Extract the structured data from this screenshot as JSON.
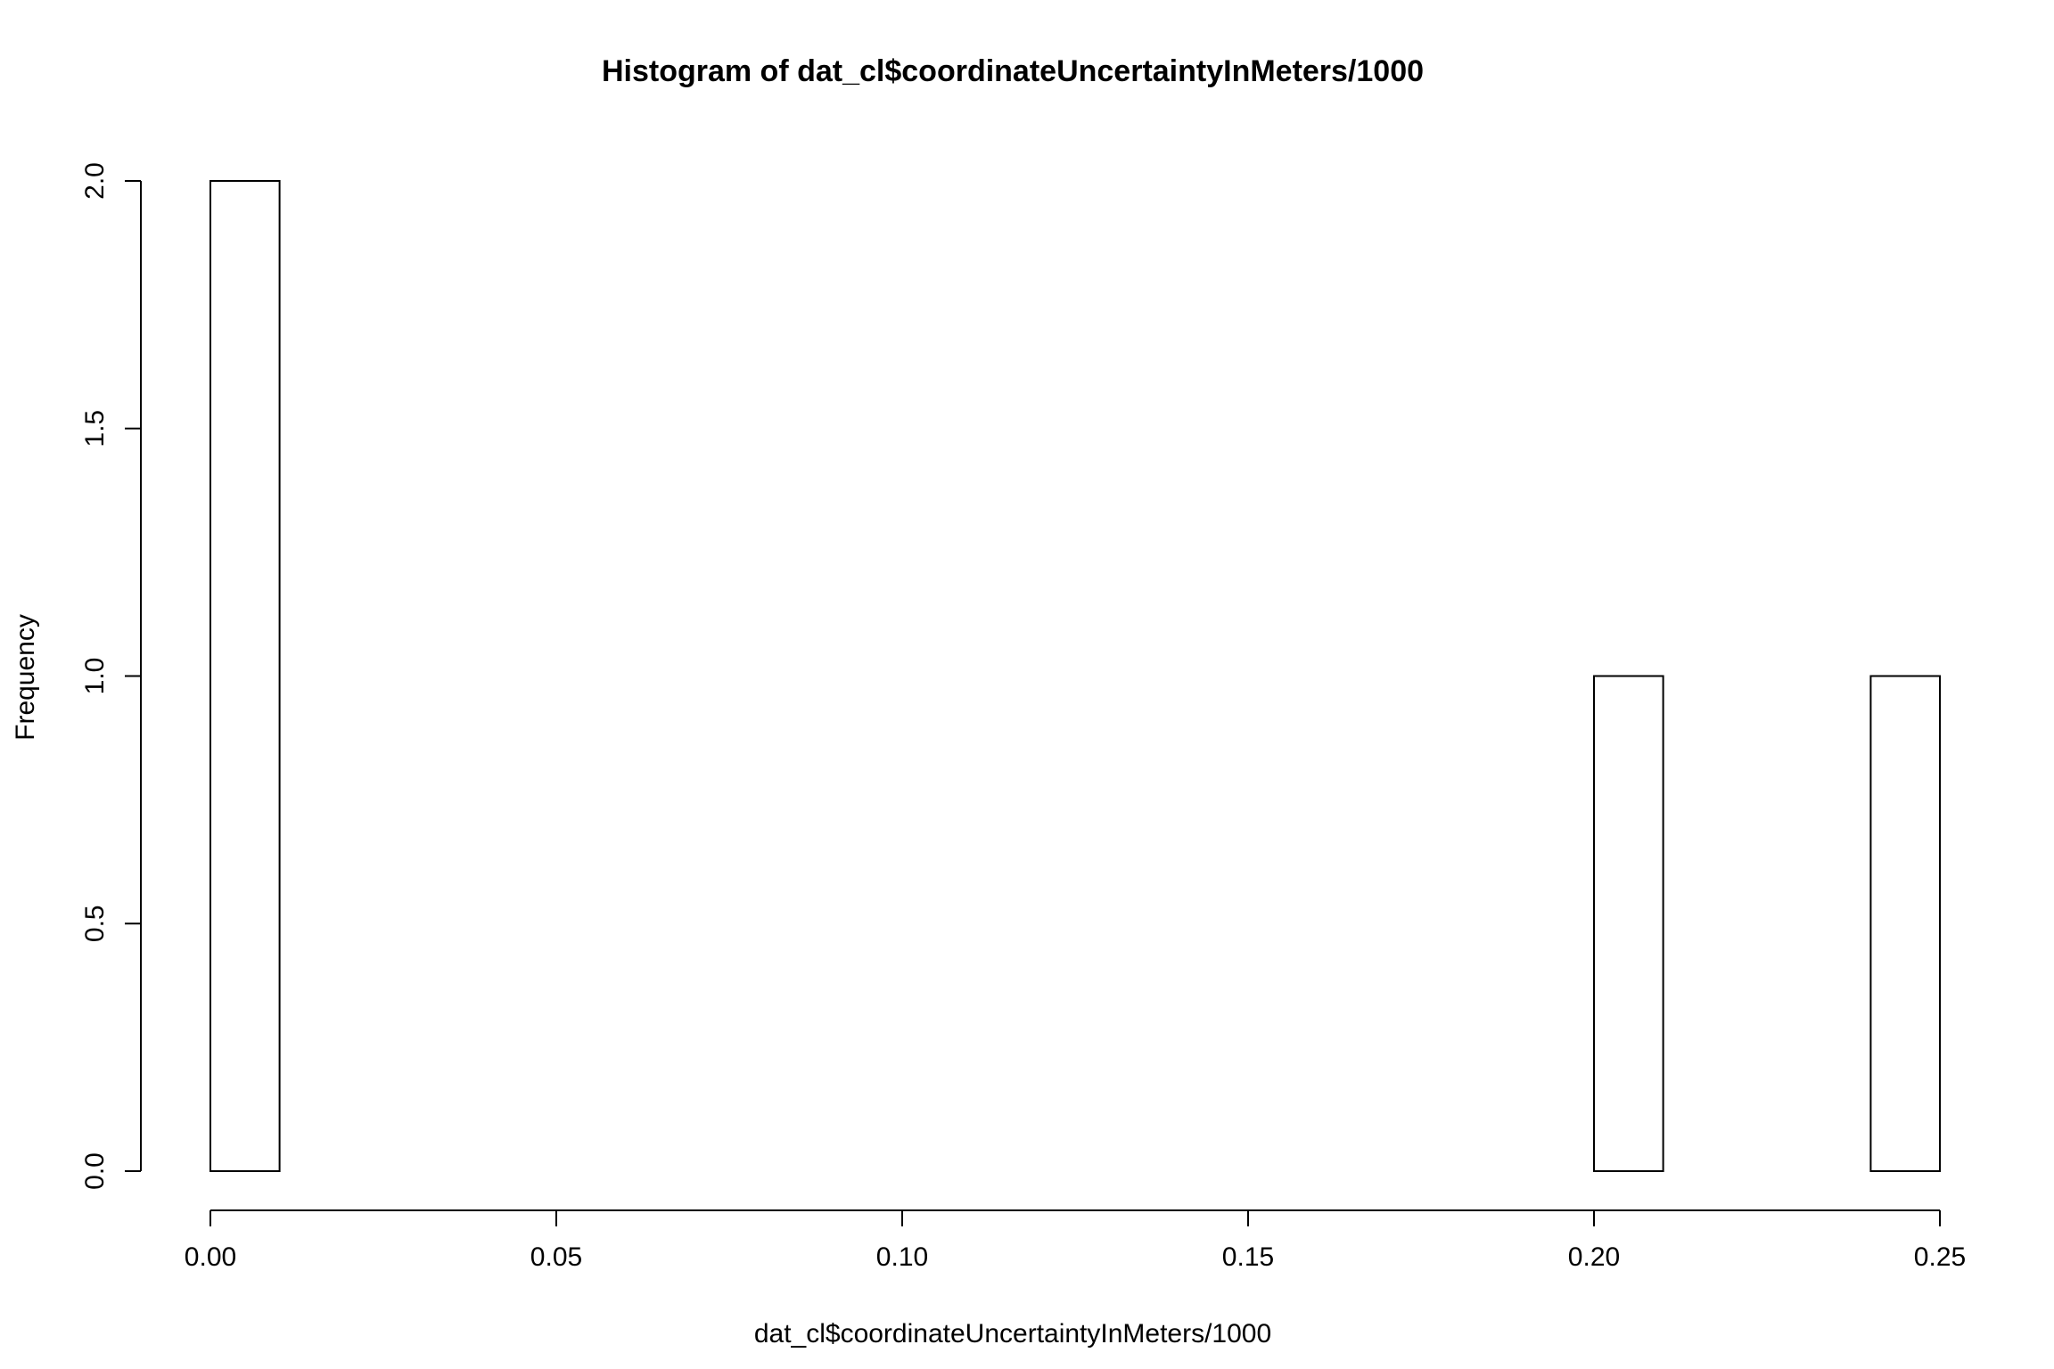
{
  "chart_data": {
    "type": "bar",
    "title": "Histogram of dat_cl$coordinateUncertaintyInMeters/1000",
    "xlabel": "dat_cl$coordinateUncertaintyInMeters/1000",
    "ylabel": "Frequency",
    "xlim": [
      0,
      0.25
    ],
    "ylim": [
      0,
      2
    ],
    "bin_width": 0.01,
    "bins": [
      {
        "x0": 0.0,
        "x1": 0.01,
        "count": 2
      },
      {
        "x0": 0.01,
        "x1": 0.02,
        "count": 0
      },
      {
        "x0": 0.02,
        "x1": 0.03,
        "count": 0
      },
      {
        "x0": 0.03,
        "x1": 0.04,
        "count": 0
      },
      {
        "x0": 0.04,
        "x1": 0.05,
        "count": 0
      },
      {
        "x0": 0.05,
        "x1": 0.06,
        "count": 0
      },
      {
        "x0": 0.06,
        "x1": 0.07,
        "count": 0
      },
      {
        "x0": 0.07,
        "x1": 0.08,
        "count": 0
      },
      {
        "x0": 0.08,
        "x1": 0.09,
        "count": 0
      },
      {
        "x0": 0.09,
        "x1": 0.1,
        "count": 0
      },
      {
        "x0": 0.1,
        "x1": 0.11,
        "count": 0
      },
      {
        "x0": 0.11,
        "x1": 0.12,
        "count": 0
      },
      {
        "x0": 0.12,
        "x1": 0.13,
        "count": 0
      },
      {
        "x0": 0.13,
        "x1": 0.14,
        "count": 0
      },
      {
        "x0": 0.14,
        "x1": 0.15,
        "count": 0
      },
      {
        "x0": 0.15,
        "x1": 0.16,
        "count": 0
      },
      {
        "x0": 0.16,
        "x1": 0.17,
        "count": 0
      },
      {
        "x0": 0.17,
        "x1": 0.18,
        "count": 0
      },
      {
        "x0": 0.18,
        "x1": 0.19,
        "count": 0
      },
      {
        "x0": 0.19,
        "x1": 0.2,
        "count": 0
      },
      {
        "x0": 0.2,
        "x1": 0.21,
        "count": 1
      },
      {
        "x0": 0.21,
        "x1": 0.22,
        "count": 0
      },
      {
        "x0": 0.22,
        "x1": 0.23,
        "count": 0
      },
      {
        "x0": 0.23,
        "x1": 0.24,
        "count": 0
      },
      {
        "x0": 0.24,
        "x1": 0.25,
        "count": 1
      }
    ],
    "x_ticks": [
      {
        "value": 0.0,
        "label": "0.00"
      },
      {
        "value": 0.05,
        "label": "0.05"
      },
      {
        "value": 0.1,
        "label": "0.10"
      },
      {
        "value": 0.15,
        "label": "0.15"
      },
      {
        "value": 0.2,
        "label": "0.20"
      },
      {
        "value": 0.25,
        "label": "0.25"
      }
    ],
    "y_ticks": [
      {
        "value": 0.0,
        "label": "0.0"
      },
      {
        "value": 0.5,
        "label": "0.5"
      },
      {
        "value": 1.0,
        "label": "1.0"
      },
      {
        "value": 1.5,
        "label": "1.5"
      },
      {
        "value": 2.0,
        "label": "2.0"
      }
    ],
    "grid": false,
    "bar_fill": "#ffffff",
    "bar_stroke": "#000000"
  }
}
